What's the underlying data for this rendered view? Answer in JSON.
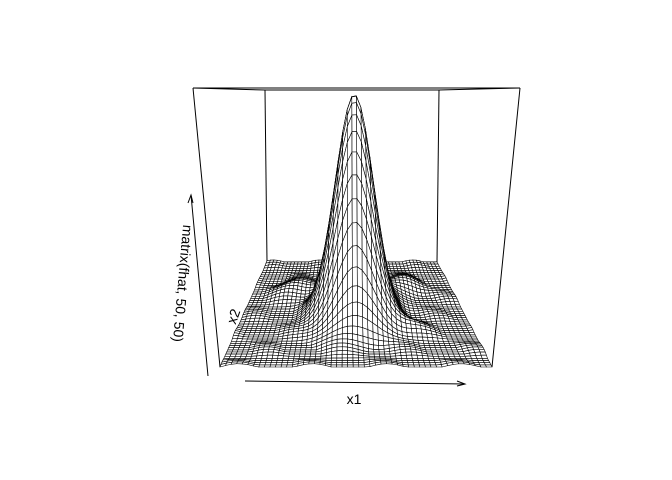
{
  "chart_data": {
    "type": "surface",
    "plot_style": "perspective wireframe (persp)",
    "xlabel": "x1",
    "ylabel": "x2",
    "zlabel": "matrix(fhat, 50, 50)",
    "grid_size": [
      50,
      50
    ],
    "axis_ticks": false,
    "box": true,
    "surface_fill": "#ffffff",
    "line_color": "#000000",
    "surface_shape": {
      "description_components": [
        {
          "x1_center": 0.5,
          "x2_center": 0.5,
          "spread_x1": 0.085,
          "spread_x2": 0.12,
          "relative_height": 1.0
        },
        {
          "x1_center": 0.22,
          "x2_center": 0.72,
          "spread_x1": 0.07,
          "spread_x2": 0.06,
          "relative_height": 0.05
        },
        {
          "x1_center": 0.75,
          "x2_center": 0.75,
          "spread_x1": 0.07,
          "spread_x2": 0.06,
          "relative_height": 0.05
        },
        {
          "x1_center": 0.7,
          "x2_center": 0.35,
          "spread_x1": 0.08,
          "spread_x2": 0.05,
          "relative_height": 0.03
        }
      ]
    }
  }
}
